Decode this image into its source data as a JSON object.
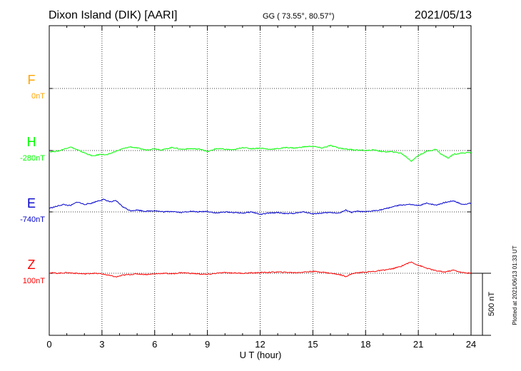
{
  "header": {
    "station": "Dixon Island (DIK)  [AARI]",
    "coords": "GG ( 73.55°,  80.57°)",
    "date": "2021/05/13"
  },
  "footer": {
    "plotted": "Plotted at 2021/06/13 01:33 UT",
    "scale_label": "500 nT"
  },
  "chart_data": {
    "type": "line",
    "xlabel": "U T (hour)",
    "x_ticks": [
      "0",
      "3",
      "6",
      "9",
      "12",
      "15",
      "18",
      "21",
      "24"
    ],
    "xlim": [
      0,
      24
    ],
    "grid": true,
    "scale_bar_nT": 500,
    "series": [
      {
        "name": "F",
        "baseline_label": "0nT",
        "color": "#ffa500",
        "x": [],
        "values": []
      },
      {
        "name": "H",
        "baseline_label": "-280nT",
        "color": "#00ff00",
        "x": [
          0,
          0.5,
          1.0,
          1.2,
          1.6,
          2.2,
          2.5,
          2.9,
          3.3,
          3.7,
          4.2,
          4.6,
          5.0,
          5.5,
          6.0,
          6.4,
          7.0,
          7.5,
          8.0,
          8.7,
          9.0,
          9.5,
          10.0,
          10.5,
          11.0,
          11.5,
          12.0,
          12.5,
          13.0,
          13.5,
          14.0,
          14.5,
          15.0,
          15.5,
          16.0,
          16.5,
          17.0,
          17.5,
          18.0,
          18.5,
          19.0,
          19.5,
          20.0,
          20.3,
          20.6,
          21.0,
          21.5,
          22.0,
          22.3,
          22.7,
          23.0,
          23.5,
          24.0
        ],
        "values": [
          -10,
          -5,
          20,
          30,
          5,
          -30,
          -45,
          -30,
          -35,
          -10,
          15,
          30,
          20,
          5,
          15,
          5,
          25,
          10,
          15,
          10,
          -10,
          15,
          10,
          5,
          25,
          15,
          20,
          10,
          15,
          25,
          20,
          30,
          35,
          20,
          40,
          20,
          10,
          5,
          0,
          5,
          -10,
          -10,
          -20,
          -50,
          -85,
          -40,
          -5,
          10,
          -30,
          -60,
          -30,
          -20,
          -15
        ]
      },
      {
        "name": "E",
        "baseline_label": "-740nT",
        "color": "#0000cd",
        "x": [
          0,
          0.3,
          0.8,
          1.2,
          1.6,
          2.0,
          2.4,
          2.8,
          3.1,
          3.5,
          3.8,
          4.2,
          4.6,
          5.0,
          5.5,
          6.0,
          6.5,
          7.0,
          7.5,
          8.0,
          8.5,
          9.0,
          9.5,
          10.0,
          10.5,
          11.0,
          11.5,
          12.0,
          12.5,
          13.0,
          13.5,
          14.0,
          14.5,
          15.0,
          15.5,
          16.0,
          16.5,
          16.9,
          17.2,
          17.5,
          18.0,
          18.5,
          19.0,
          19.5,
          20.0,
          20.5,
          21.0,
          21.5,
          22.0,
          22.5,
          23.0,
          23.5,
          24.0
        ],
        "values": [
          30,
          40,
          60,
          50,
          80,
          60,
          70,
          90,
          100,
          80,
          90,
          40,
          10,
          15,
          5,
          10,
          0,
          5,
          -5,
          5,
          0,
          5,
          -10,
          0,
          -5,
          -10,
          0,
          -20,
          -10,
          -5,
          -15,
          -10,
          0,
          -15,
          -10,
          -5,
          -10,
          15,
          -5,
          5,
          0,
          10,
          20,
          40,
          55,
          60,
          50,
          70,
          55,
          75,
          90,
          60,
          70
        ]
      },
      {
        "name": "Z",
        "baseline_label": "100nT",
        "color": "#ff0000",
        "x": [
          0,
          0.5,
          1.0,
          1.5,
          2.0,
          2.5,
          3.0,
          3.5,
          3.8,
          4.2,
          4.6,
          5.0,
          5.5,
          6.0,
          6.5,
          7.0,
          7.5,
          8.0,
          8.5,
          9.0,
          9.5,
          10.0,
          11.0,
          12.0,
          13.0,
          14.0,
          15.0,
          15.5,
          16.0,
          16.5,
          16.9,
          17.3,
          18.0,
          18.5,
          19.0,
          19.5,
          20.0,
          20.3,
          20.6,
          21.0,
          21.5,
          22.0,
          22.5,
          23.0,
          23.5,
          24.0
        ],
        "values": [
          5,
          0,
          5,
          0,
          -5,
          0,
          -5,
          -20,
          -30,
          -15,
          -10,
          -5,
          -10,
          -5,
          0,
          -5,
          5,
          0,
          -5,
          -10,
          0,
          5,
          0,
          5,
          10,
          5,
          15,
          10,
          0,
          -10,
          -25,
          0,
          10,
          15,
          25,
          35,
          55,
          75,
          90,
          65,
          40,
          20,
          10,
          25,
          5,
          0
        ]
      }
    ]
  }
}
